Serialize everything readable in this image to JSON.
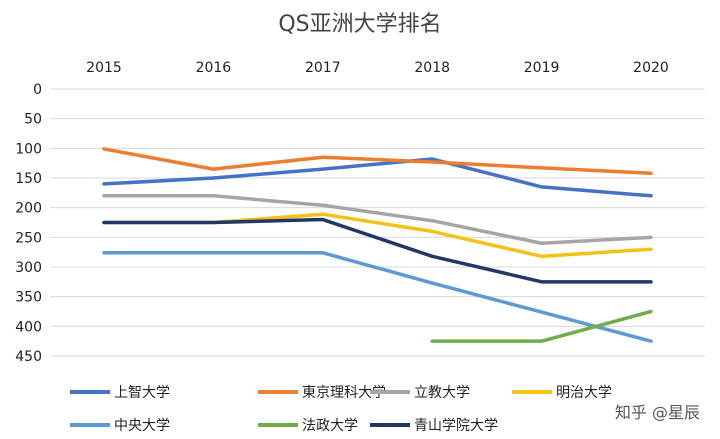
{
  "chart_data": {
    "type": "line",
    "title": "QS亚洲大学排名",
    "xlabel": "",
    "ylabel": "",
    "x": [
      "2015",
      "2016",
      "2017",
      "2018",
      "2019",
      "2020"
    ],
    "yticks": [
      0,
      50,
      100,
      150,
      200,
      250,
      300,
      350,
      400,
      450
    ],
    "ylim": [
      0,
      450
    ],
    "y_inverted": true,
    "x_axis_position": "top",
    "grid": true,
    "legend_position": "bottom",
    "series": [
      {
        "name": "上智大学",
        "color": "#4472C4",
        "values": [
          160,
          150,
          135,
          118,
          165,
          180
        ]
      },
      {
        "name": "東京理科大学",
        "color": "#ED7D31",
        "values": [
          101,
          135,
          115,
          123,
          133,
          142
        ]
      },
      {
        "name": "立教大学",
        "color": "#A5A5A5",
        "values": [
          180,
          180,
          196,
          222,
          260,
          250
        ]
      },
      {
        "name": "明治大学",
        "color": "#F2C314",
        "values": [
          225,
          225,
          211,
          240,
          282,
          270
        ]
      },
      {
        "name": "中央大学",
        "color": "#5B9BD5",
        "values": [
          276,
          276,
          276,
          327,
          376,
          425
        ]
      },
      {
        "name": "法政大学",
        "color": "#70AD47",
        "values": [
          null,
          null,
          null,
          425,
          425,
          375
        ]
      },
      {
        "name": "青山学院大学",
        "color": "#1F3864",
        "values": [
          225,
          225,
          220,
          282,
          325,
          325
        ]
      }
    ]
  },
  "watermark": "知乎 @星辰"
}
